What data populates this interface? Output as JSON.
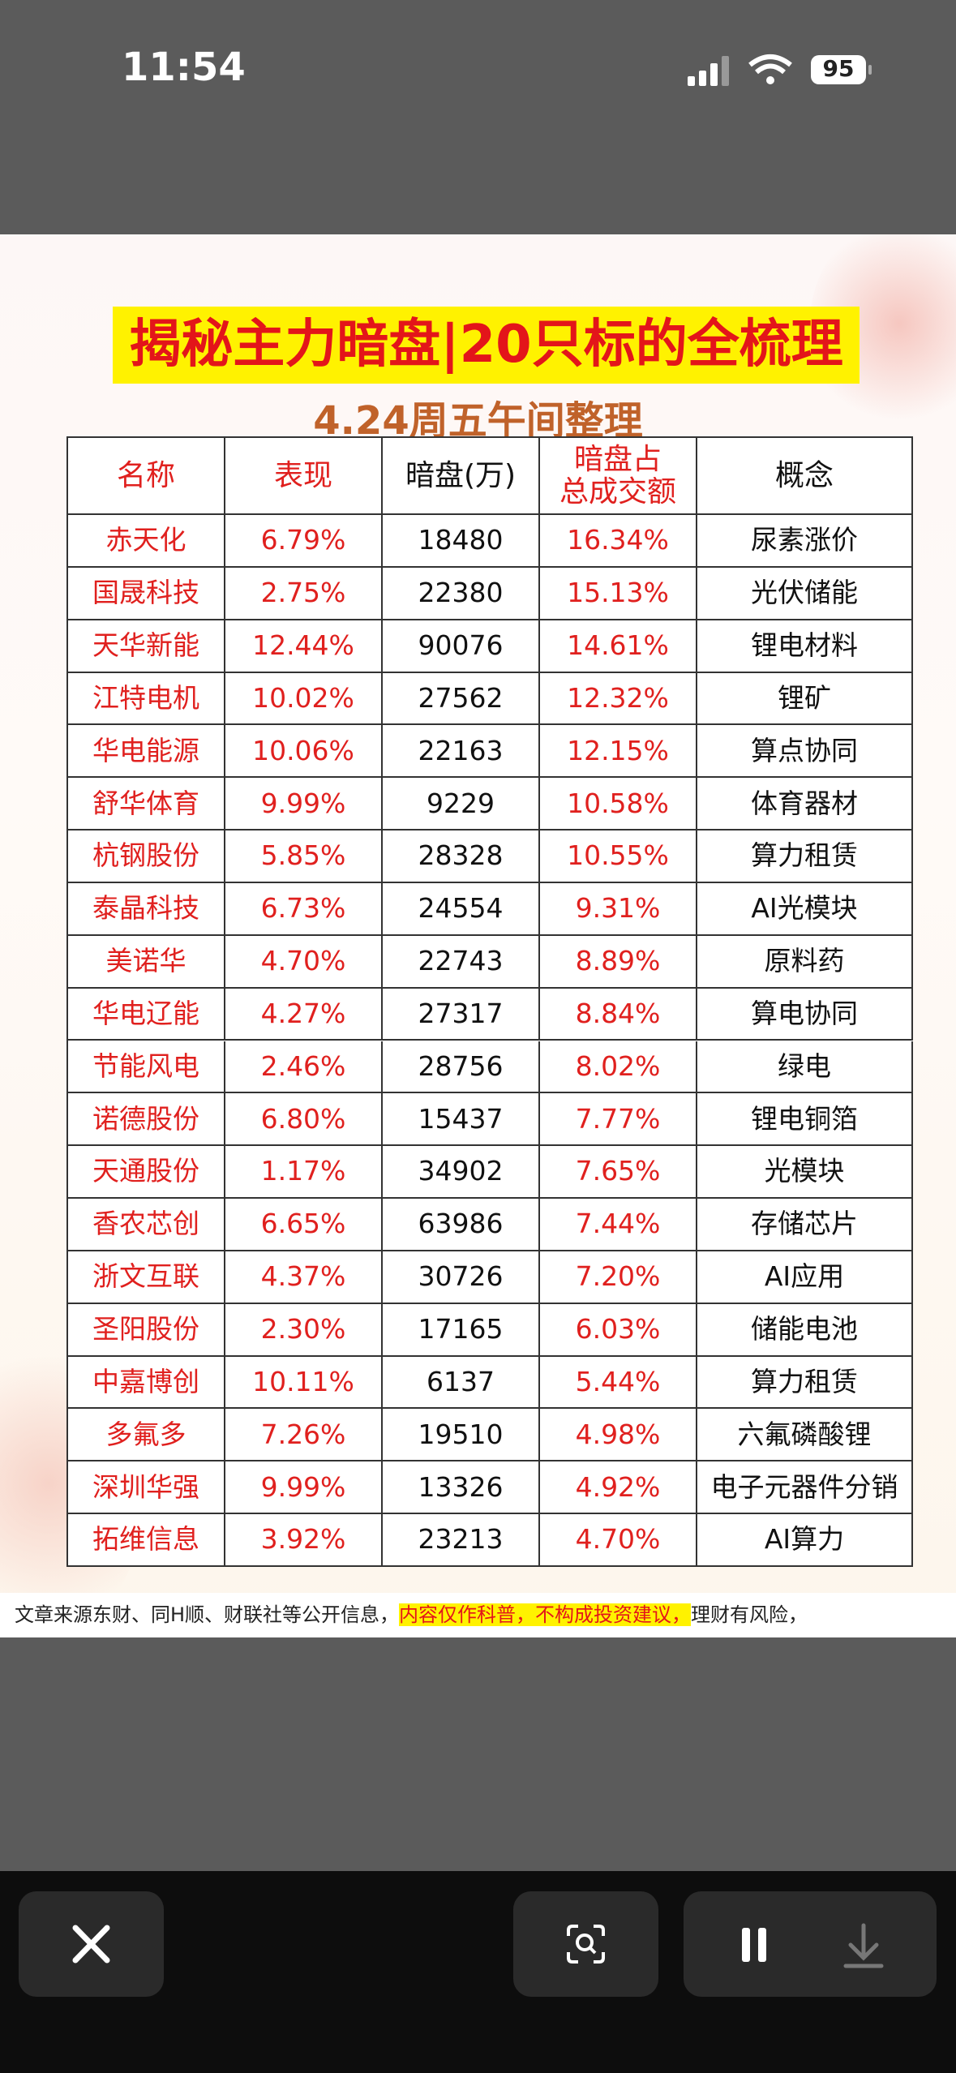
{
  "status_bar": {
    "time": "11:54",
    "battery": "95"
  },
  "poster": {
    "title": "揭秘主力暗盘|20只标的全梳理",
    "subtitle": "4.24周五午间整理",
    "table": {
      "header": [
        "名称",
        "表现",
        "暗盘(万)",
        [
          "暗盘占",
          "总成交额"
        ],
        "概念"
      ],
      "rows": [
        [
          "赤天化",
          "6.79%",
          "18480",
          "16.34%",
          "尿素涨价"
        ],
        [
          "国晟科技",
          "2.75%",
          "22380",
          "15.13%",
          "光伏储能"
        ],
        [
          "天华新能",
          "12.44%",
          "90076",
          "14.61%",
          "锂电材料"
        ],
        [
          "江特电机",
          "10.02%",
          "27562",
          "12.32%",
          "锂矿"
        ],
        [
          "华电能源",
          "10.06%",
          "22163",
          "12.15%",
          "算点协同"
        ],
        [
          "舒华体育",
          "9.99%",
          "9229",
          "10.58%",
          "体育器材"
        ],
        [
          "杭钢股份",
          "5.85%",
          "28328",
          "10.55%",
          "算力租赁"
        ],
        [
          "泰晶科技",
          "6.73%",
          "24554",
          "9.31%",
          "AI光模块"
        ],
        [
          "美诺华",
          "4.70%",
          "22743",
          "8.89%",
          "原料药"
        ],
        [
          "华电辽能",
          "4.27%",
          "27317",
          "8.84%",
          "算电协同"
        ],
        [
          "节能风电",
          "2.46%",
          "28756",
          "8.02%",
          "绿电"
        ],
        [
          "诺德股份",
          "6.80%",
          "15437",
          "7.77%",
          "锂电铜箔"
        ],
        [
          "天通股份",
          "1.17%",
          "34902",
          "7.65%",
          "光模块"
        ],
        [
          "香农芯创",
          "6.65%",
          "63986",
          "7.44%",
          "存储芯片"
        ],
        [
          "浙文互联",
          "4.37%",
          "30726",
          "7.20%",
          "AI应用"
        ],
        [
          "圣阳股份",
          "2.30%",
          "17165",
          "6.03%",
          "储能电池"
        ],
        [
          "中嘉博创",
          "10.11%",
          "6137",
          "5.44%",
          "算力租赁"
        ],
        [
          "多氟多",
          "7.26%",
          "19510",
          "4.98%",
          "六氟磷酸锂"
        ],
        [
          "深圳华强",
          "9.99%",
          "13326",
          "4.92%",
          "电子元器件分销"
        ],
        [
          "拓维信息",
          "3.92%",
          "23213",
          "4.70%",
          "AI算力"
        ]
      ]
    },
    "footer": {
      "source": "文章来源东财、同H顺、财联社等公开信息，",
      "warning": "内容仅作科普，不构成投资建议，",
      "risk": "理财有风险，"
    }
  }
}
